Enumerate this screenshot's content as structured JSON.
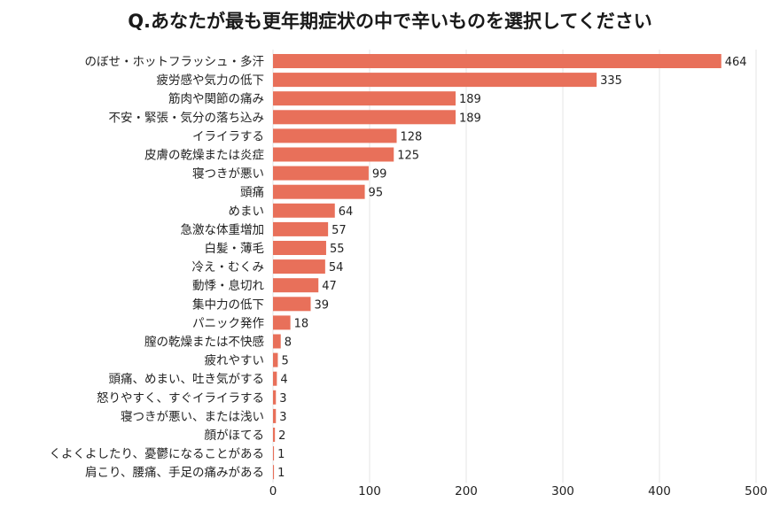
{
  "chart_data": {
    "type": "bar",
    "orientation": "horizontal",
    "title": "Q.あなたが最も更年期症状の中で辛いものを選択してください",
    "xlabel": "",
    "ylabel": "",
    "xlim": [
      0,
      500
    ],
    "xticks": [
      0,
      100,
      200,
      300,
      400,
      500
    ],
    "grid": true,
    "bar_color": "#e8705a",
    "categories": [
      "のぼせ・ホットフラッシュ・多汗",
      "疲労感や気力の低下",
      "筋肉や関節の痛み",
      "不安・緊張・気分の落ち込み",
      "イライラする",
      "皮膚の乾燥または炎症",
      "寝つきが悪い",
      "頭痛",
      "めまい",
      "急激な体重増加",
      "白髪・薄毛",
      "冷え・むくみ",
      "動悸・息切れ",
      "集中力の低下",
      "パニック発作",
      "膣の乾燥または不快感",
      "疲れやすい",
      "頭痛、めまい、吐き気がする",
      "怒りやすく、すぐイライラする",
      "寝つきが悪い、または浅い",
      "顔がほてる",
      "くよくよしたり、憂鬱になることがある",
      "肩こり、腰痛、手足の痛みがある"
    ],
    "values": [
      464,
      335,
      189,
      189,
      128,
      125,
      99,
      95,
      64,
      57,
      55,
      54,
      47,
      39,
      18,
      8,
      5,
      4,
      3,
      3,
      2,
      1,
      1
    ]
  }
}
